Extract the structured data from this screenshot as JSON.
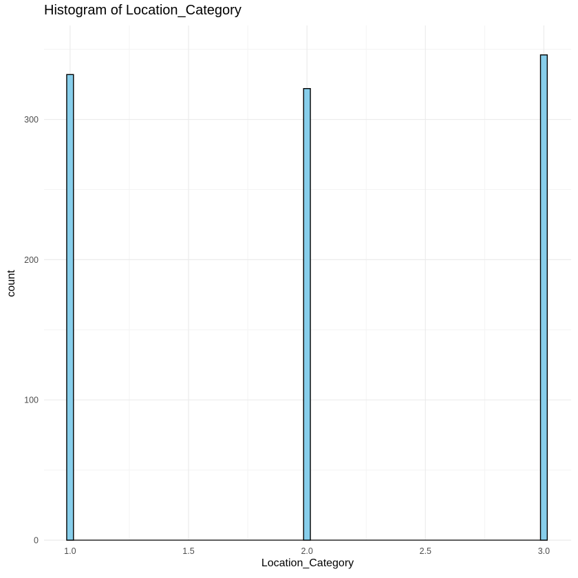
{
  "chart_data": {
    "type": "bar",
    "title": "Histogram of Location_Category",
    "xlabel": "Location_Category",
    "ylabel": "count",
    "xlim": [
      0.89,
      3.115
    ],
    "ylim": [
      0,
      367
    ],
    "x_ticks": [
      1.0,
      1.5,
      2.0,
      2.5,
      3.0
    ],
    "x_tick_labels": [
      "1.0",
      "1.5",
      "2.0",
      "2.5",
      "3.0"
    ],
    "y_ticks": [
      0,
      100,
      200,
      300
    ],
    "y_tick_labels": [
      "0",
      "100",
      "200",
      "300"
    ],
    "bin_width": 0.02857,
    "bins": [
      {
        "center": 1.0,
        "count": 332
      },
      {
        "center": 2.0,
        "count": 322
      },
      {
        "center": 3.0,
        "count": 346
      }
    ],
    "grid": true,
    "colors": {
      "bar_fill": "#87CEEB",
      "bar_outline": "#000000",
      "grid_major": "#ebebeb",
      "grid_minor": "#f3f3f3"
    }
  }
}
